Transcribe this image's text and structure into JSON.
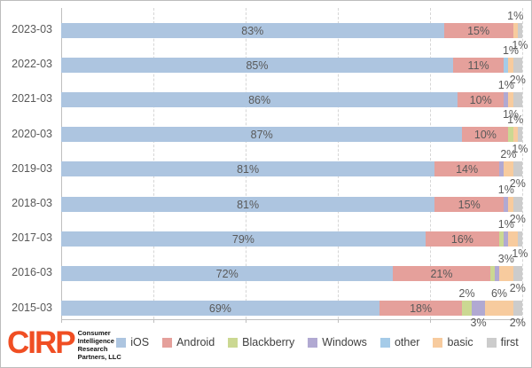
{
  "branding": {
    "logo_text": "CIRP",
    "logo_color": "#F04E23",
    "company_lines": [
      "Consumer",
      "Intelligence",
      "Research",
      "Partners, LLC"
    ]
  },
  "chart_data": {
    "type": "bar",
    "stacked": true,
    "orientation": "horizontal",
    "unit": "%",
    "title": "",
    "x_axis": {
      "min": 0,
      "max": 100,
      "gridline_step": 20,
      "gridline_style": "dashed",
      "tick_labels_visible": false
    },
    "categories": [
      "2023-03",
      "2022-03",
      "2021-03",
      "2020-03",
      "2019-03",
      "2018-03",
      "2017-03",
      "2016-03",
      "2015-03"
    ],
    "series": [
      {
        "name": "iOS",
        "color": "#ADC5E0",
        "values": [
          83,
          85,
          86,
          87,
          81,
          81,
          79,
          72,
          69
        ],
        "label_style": "inside"
      },
      {
        "name": "Android",
        "color": "#E5A09B",
        "values": [
          15,
          11,
          10,
          10,
          14,
          15,
          16,
          21,
          18
        ],
        "label_style": "inside"
      },
      {
        "name": "Blackberry",
        "color": "#CBD892",
        "values": [
          0,
          0,
          0,
          1,
          0,
          0,
          1,
          1,
          2
        ],
        "label_placements": [
          null,
          null,
          null,
          "hidden",
          null,
          null,
          "hidden",
          "hidden",
          "above"
        ]
      },
      {
        "name": "Windows",
        "color": "#B1A9D2",
        "values": [
          0,
          0,
          1,
          0,
          1,
          1,
          1,
          1,
          3
        ],
        "label_placements": [
          null,
          null,
          "above",
          null,
          "hidden",
          "above",
          "above",
          "hidden",
          "below"
        ]
      },
      {
        "name": "other",
        "color": "#A5CBE8",
        "values": [
          0,
          1,
          0,
          0,
          0,
          0,
          0,
          0,
          0
        ],
        "label_placements": [
          null,
          "hidden",
          null,
          null,
          null,
          null,
          null,
          null,
          null
        ]
      },
      {
        "name": "basic",
        "color": "#F7CB9E",
        "values": [
          1,
          1,
          1,
          1,
          2,
          1,
          2,
          3,
          6
        ],
        "label_placements": [
          "above",
          "above",
          "below",
          "above",
          "above",
          "hidden",
          "hidden",
          "above",
          "above"
        ]
      },
      {
        "name": "first",
        "color": "#CCCCCC",
        "values": [
          1,
          2,
          2,
          1,
          2,
          2,
          1,
          2,
          2
        ],
        "label_placements": [
          "below",
          "below",
          "hidden",
          "below",
          "below",
          "below",
          "below",
          "below",
          "below"
        ]
      }
    ],
    "legend": {
      "position": "bottom",
      "items": [
        "iOS",
        "Android",
        "Blackberry",
        "Windows",
        "other",
        "basic",
        "first"
      ]
    }
  }
}
